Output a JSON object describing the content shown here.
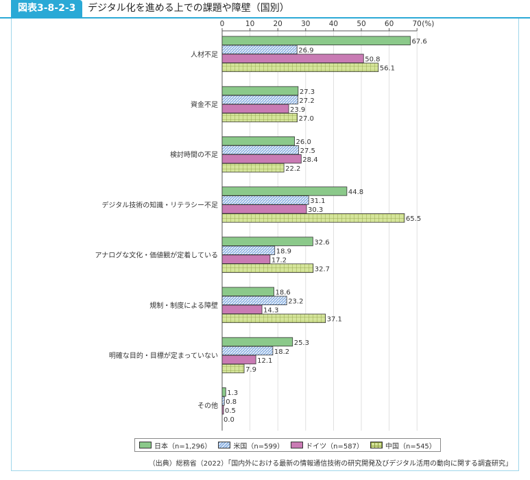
{
  "header": {
    "figure_label": "図表3-8-2-3",
    "title": "デジタル化を進める上での課題や障壁（国別）"
  },
  "source_note": "（出典）総務省（2022）「国内外における最新の情報通信技術の研究開発及びデジタル活用の動向に関する調査研究」",
  "colors": {
    "japan": "#8bc98a",
    "us": "#8fb4e3",
    "germany": "#c97bb4",
    "china": "#d5e59a",
    "accent": "#2aa9d6"
  },
  "chart_data": {
    "type": "bar",
    "orientation": "horizontal",
    "xlim": [
      0,
      70
    ],
    "x_ticks": [
      "0",
      "10",
      "20",
      "30",
      "40",
      "50",
      "60",
      "70"
    ],
    "x_unit": "(%)",
    "grid": true,
    "legend_position": "bottom",
    "categories": [
      "人材不足",
      "資金不足",
      "検討時間の不足",
      "デジタル技術の知識・リテラシー不足",
      "アナログな文化・価値観が定着している",
      "規制・制度による障壁",
      "明確な目的・目標が定まっていない",
      "その他"
    ],
    "series": [
      {
        "name": "日本（n=1,296）",
        "key": "japan",
        "pattern": "solid",
        "values": [
          67.6,
          27.3,
          26.0,
          44.8,
          32.6,
          18.6,
          25.3,
          1.3
        ]
      },
      {
        "name": "米国（n=599）",
        "key": "us",
        "pattern": "diagonal",
        "values": [
          26.9,
          27.2,
          27.5,
          31.1,
          18.9,
          23.2,
          18.2,
          0.8
        ]
      },
      {
        "name": "ドイツ（n=587）",
        "key": "germany",
        "pattern": "solid",
        "values": [
          50.8,
          23.9,
          28.4,
          30.3,
          17.2,
          14.3,
          12.1,
          0.5
        ]
      },
      {
        "name": "中国（n=545）",
        "key": "china",
        "pattern": "grid",
        "values": [
          56.1,
          27.0,
          22.2,
          65.5,
          32.7,
          37.1,
          7.9,
          0.0
        ]
      }
    ]
  }
}
